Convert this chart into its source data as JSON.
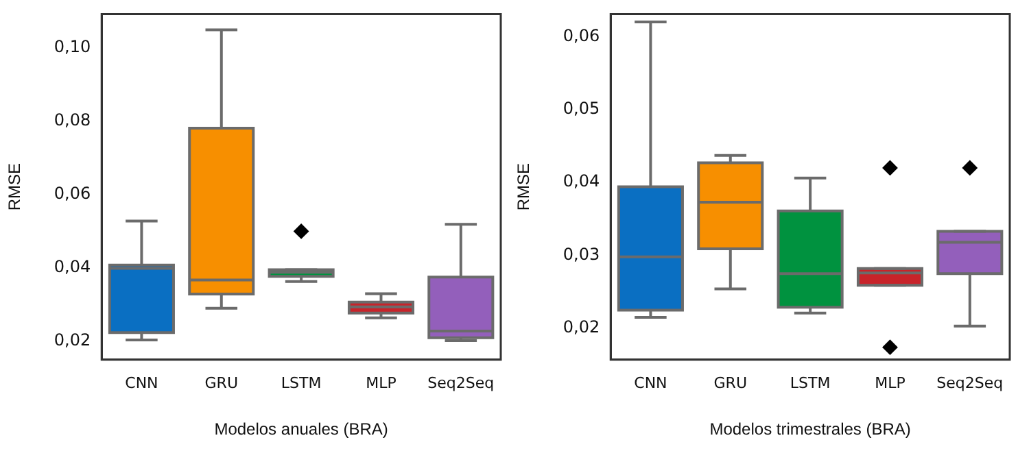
{
  "chart_data": [
    {
      "type": "box",
      "xlabel": "Modelos anuales (BRA)",
      "ylabel": "RMSE",
      "categories": [
        "CNN",
        "GRU",
        "LSTM",
        "MLP",
        "Seq2Seq"
      ],
      "colors": [
        "#0a6fc2",
        "#f78f00",
        "#00923f",
        "#c8232a",
        "#935fbb"
      ],
      "boxes": [
        {
          "low": 0.0204,
          "q1": 0.0224,
          "median": 0.0399,
          "q3": 0.0408,
          "high": 0.0528
        },
        {
          "low": 0.029,
          "q1": 0.0329,
          "median": 0.0367,
          "q3": 0.0781,
          "high": 0.1049
        },
        {
          "low": 0.0363,
          "q1": 0.0377,
          "median": 0.0388,
          "q3": 0.0395,
          "high": 0.0395,
          "outliers": [
            0.05
          ]
        },
        {
          "low": 0.0264,
          "q1": 0.0277,
          "median": 0.0294,
          "q3": 0.0307,
          "high": 0.033
        },
        {
          "low": 0.0202,
          "q1": 0.021,
          "median": 0.0228,
          "q3": 0.0375,
          "high": 0.0519
        }
      ],
      "ylim": [
        0.015,
        0.1092
      ],
      "yticks": [
        {
          "value": 0.02,
          "label": "0,02"
        },
        {
          "value": 0.04,
          "label": "0,04"
        },
        {
          "value": 0.06,
          "label": "0,06"
        },
        {
          "value": 0.08,
          "label": "0,08"
        },
        {
          "value": 0.1,
          "label": "0,10"
        }
      ],
      "legend": false
    },
    {
      "type": "box",
      "xlabel": "Modelos trimestrales (BRA)",
      "ylabel": "RMSE",
      "categories": [
        "CNN",
        "GRU",
        "LSTM",
        "MLP",
        "Seq2Seq"
      ],
      "colors": [
        "#0a6fc2",
        "#f78f00",
        "#00923f",
        "#c8232a",
        "#935fbb"
      ],
      "boxes": [
        {
          "low": 0.0215,
          "q1": 0.0225,
          "median": 0.0298,
          "q3": 0.0394,
          "high": 0.062
        },
        {
          "low": 0.0254,
          "q1": 0.0309,
          "median": 0.0373,
          "q3": 0.0427,
          "high": 0.0437
        },
        {
          "low": 0.0221,
          "q1": 0.0229,
          "median": 0.0275,
          "q3": 0.0361,
          "high": 0.0406
        },
        {
          "low": 0.0259,
          "q1": 0.0259,
          "median": 0.0276,
          "q3": 0.0282,
          "high": 0.0282,
          "outliers": [
            0.042,
            0.0174
          ]
        },
        {
          "low": 0.0203,
          "q1": 0.0275,
          "median": 0.0318,
          "q3": 0.0333,
          "high": 0.0333,
          "outliers": [
            0.042
          ]
        }
      ],
      "ylim": [
        0.0157,
        0.0631
      ],
      "yticks": [
        {
          "value": 0.02,
          "label": "0,02"
        },
        {
          "value": 0.03,
          "label": "0,03"
        },
        {
          "value": 0.04,
          "label": "0,04"
        },
        {
          "value": 0.05,
          "label": "0,05"
        },
        {
          "value": 0.06,
          "label": "0,06"
        }
      ],
      "legend": false
    }
  ]
}
